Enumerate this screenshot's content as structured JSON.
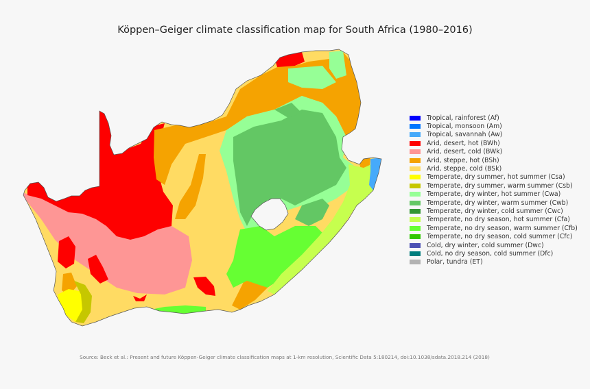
{
  "title": "Köppen–Geiger climate classification map for South Africa (1980–2016)",
  "source": "Source: Beck et al.: Present and future Köppen-Geiger climate classification maps at 1-km resolution, Scientific Data 5:180214, doi:10.1038/sdata.2018.214 (2018)",
  "legend": {
    "items": [
      {
        "label": "Tropical, rainforest (Af)",
        "code": "Af",
        "color": "#0000fe"
      },
      {
        "label": "Tropical, monsoon (Am)",
        "code": "Am",
        "color": "#0077ff"
      },
      {
        "label": "Tropical, savannah (Aw)",
        "code": "Aw",
        "color": "#46aafa"
      },
      {
        "label": "Arid, desert, hot (BWh)",
        "code": "BWh",
        "color": "#fe0000"
      },
      {
        "label": "Arid, desert, cold (BWk)",
        "code": "BWk",
        "color": "#fe9695"
      },
      {
        "label": "Arid, steppe, hot (BSh)",
        "code": "BSh",
        "color": "#f5a301"
      },
      {
        "label": "Arid, steppe, cold (BSk)",
        "code": "BSk",
        "color": "#ffdb63"
      },
      {
        "label": "Temperate, dry summer, hot summer (Csa)",
        "code": "Csa",
        "color": "#ffff00"
      },
      {
        "label": "Temperate, dry summer, warm summer (Csb)",
        "code": "Csb",
        "color": "#c6c700"
      },
      {
        "label": "Temperate, dry winter, hot summer (Cwa)",
        "code": "Cwa",
        "color": "#96ff96"
      },
      {
        "label": "Temperate, dry winter, warm summer (Cwb)",
        "code": "Cwb",
        "color": "#63c764"
      },
      {
        "label": "Temperate, dry winter, cold summer (Cwc)",
        "code": "Cwc",
        "color": "#329633"
      },
      {
        "label": "Temperate, no dry season, hot summer (Cfa)",
        "code": "Cfa",
        "color": "#c6ff4e"
      },
      {
        "label": "Temperate, no dry season, warm summer (Cfb)",
        "code": "Cfb",
        "color": "#66ff33"
      },
      {
        "label": "Temperate, no dry season, cold summer (Cfc)",
        "code": "Cfc",
        "color": "#33c701"
      },
      {
        "label": "Cold, dry winter, cold summer (Dwc)",
        "code": "Dwc",
        "color": "#4b50b4"
      },
      {
        "label": "Cold, no dry season, cold summer (Dfc)",
        "code": "Dfc",
        "color": "#007d7d"
      },
      {
        "label": "Polar, tundra (ET)",
        "code": "ET",
        "color": "#b2b2b2"
      }
    ]
  },
  "map": {
    "region": "South Africa",
    "enclave": "Lesotho"
  }
}
